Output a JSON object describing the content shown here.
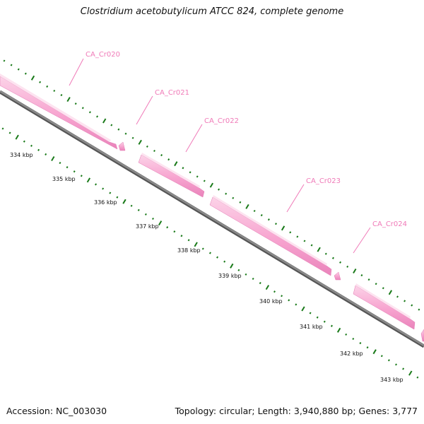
{
  "title": "Clostridium acetobutylicum ATCC 824, complete genome",
  "footer": {
    "accession": "Accession: NC_003030",
    "summary": "Topology: circular; Length: 3,940,880 bp; Genes: 3,777"
  },
  "colors": {
    "backbone": "#808080",
    "backbone_dark": "#555555",
    "gene_fill": "#f7a3cf",
    "gene_light": "#fbc6e2",
    "gene_label": "#f07ab8",
    "tick": "#1a7a1a",
    "text": "#111111"
  },
  "genes": [
    {
      "id": "gene-ca-cr020",
      "label": "CA_Cr020"
    },
    {
      "id": "gene-ca-cr021",
      "label": "CA_Cr021"
    },
    {
      "id": "gene-ca-cr022",
      "label": "CA_Cr022"
    },
    {
      "id": "gene-ca-cr023",
      "label": "CA_Cr023"
    },
    {
      "id": "gene-ca-cr024",
      "label": "CA_Cr024"
    }
  ],
  "ticks": [
    "334 kbp",
    "335 kbp",
    "336 kbp",
    "337 kbp",
    "338 kbp",
    "339 kbp",
    "340 kbp",
    "341 kbp",
    "342 kbp",
    "343 kbp"
  ]
}
